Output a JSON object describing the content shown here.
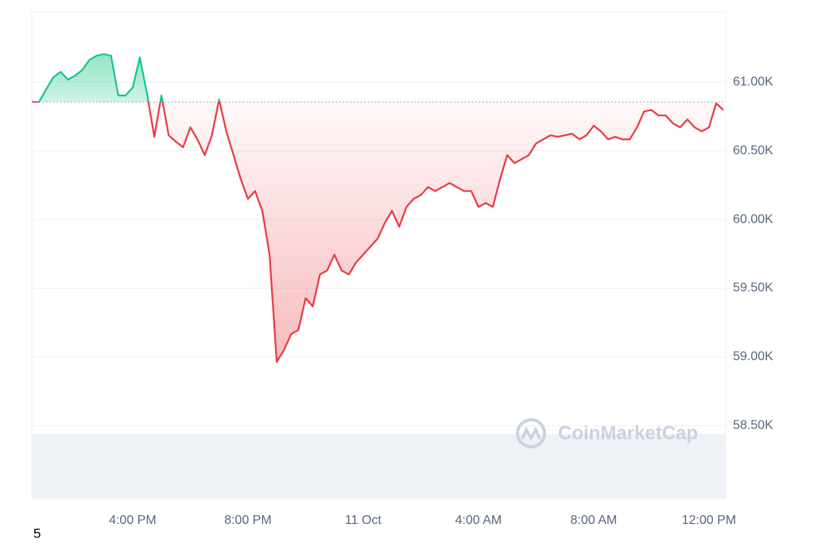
{
  "chart_data": {
    "type": "line",
    "categories": [
      null,
      null,
      null,
      null,
      null,
      null,
      null,
      null,
      null,
      null,
      null,
      null,
      null,
      null,
      "4:00 PM",
      null,
      null,
      null,
      null,
      null,
      null,
      null,
      null,
      null,
      null,
      null,
      null,
      null,
      null,
      null,
      "8:00 PM",
      null,
      null,
      null,
      null,
      null,
      null,
      null,
      null,
      null,
      null,
      null,
      null,
      null,
      null,
      null,
      "11 Oct",
      null,
      null,
      null,
      null,
      null,
      null,
      null,
      null,
      null,
      null,
      null,
      null,
      null,
      null,
      null,
      "4:00 AM",
      null,
      null,
      null,
      null,
      null,
      null,
      null,
      null,
      null,
      null,
      null,
      null,
      null,
      null,
      null,
      "8:00 AM",
      null,
      null,
      null,
      null,
      null,
      null,
      null,
      null,
      null,
      null,
      null,
      null,
      null,
      null,
      null,
      "12:00 PM",
      null,
      null
    ],
    "values": [
      60855,
      60855,
      60948,
      61035,
      61075,
      61017,
      61046,
      61087,
      61162,
      61191,
      61203,
      61191,
      60902,
      60902,
      60959,
      61179,
      60913,
      60601,
      60902,
      60612,
      60566,
      60525,
      60670,
      60583,
      60468,
      60612,
      60873,
      60641,
      60468,
      60294,
      60150,
      60207,
      60063,
      59744,
      58963,
      59050,
      59166,
      59195,
      59427,
      59368,
      59600,
      59629,
      59744,
      59629,
      59600,
      59686,
      59744,
      59802,
      59860,
      59976,
      60063,
      59947,
      60091,
      60150,
      60178,
      60236,
      60207,
      60236,
      60265,
      60236,
      60207,
      60207,
      60091,
      60120,
      60091,
      60294,
      60468,
      60410,
      60439,
      60468,
      60554,
      60583,
      60612,
      60601,
      60612,
      60624,
      60583,
      60612,
      60682,
      60641,
      60583,
      60601,
      60583,
      60583,
      60670,
      60786,
      60797,
      60757,
      60757,
      60699,
      60670,
      60728,
      60670,
      60641,
      60670,
      60844,
      60797
    ],
    "baseline": 60855,
    "up_color": "#16c784",
    "down_color": "#ea3943",
    "ylim": [
      57970,
      61510
    ],
    "yticks": [
      {
        "value": 58500,
        "label": "58.50K"
      },
      {
        "value": 59000,
        "label": "59.00K"
      },
      {
        "value": 59500,
        "label": "59.50K"
      },
      {
        "value": 60000,
        "label": "60.00K"
      },
      {
        "value": 60500,
        "label": "60.50K"
      },
      {
        "value": 61000,
        "label": "61.00K"
      }
    ],
    "grid": true,
    "watermark": "CoinMarketCap",
    "footnote": "5"
  }
}
